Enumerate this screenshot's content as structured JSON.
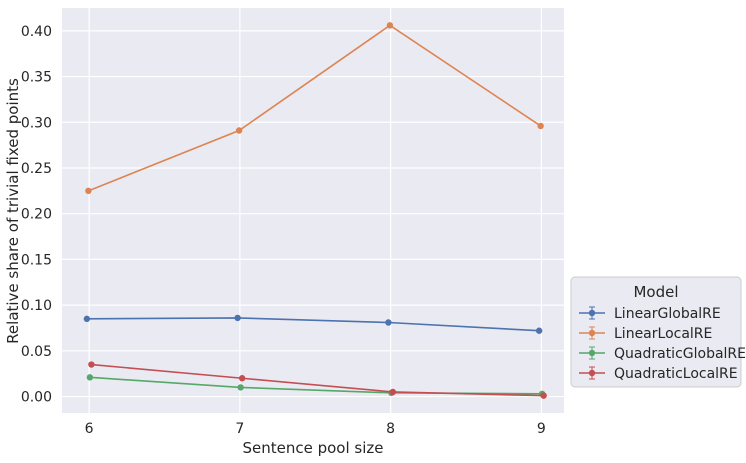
{
  "chart_data": {
    "type": "line",
    "title": "",
    "xlabel": "Sentence pool size",
    "ylabel": "Relative share of trivial fixed points",
    "x": [
      6,
      7,
      8,
      9
    ],
    "x_ticks": [
      "6",
      "7",
      "8",
      "9"
    ],
    "y_ticks": [
      "0.00",
      "0.05",
      "0.10",
      "0.15",
      "0.20",
      "0.25",
      "0.30",
      "0.35",
      "0.40"
    ],
    "ylim": [
      -0.018,
      0.425
    ],
    "grid": true,
    "legend_title": "Model",
    "legend_position": "center-right outside",
    "series": [
      {
        "name": "LinearGlobalRE",
        "color": "#4c72b0",
        "values": [
          0.085,
          0.086,
          0.081,
          0.072
        ]
      },
      {
        "name": "LinearLocalRE",
        "color": "#dd8452",
        "values": [
          0.225,
          0.291,
          0.406,
          0.296
        ]
      },
      {
        "name": "QuadraticGlobalRE",
        "color": "#55a868",
        "values": [
          0.021,
          0.01,
          0.004,
          0.003
        ]
      },
      {
        "name": "QuadraticLocalRE",
        "color": "#c44e52",
        "values": [
          0.035,
          0.02,
          0.005,
          0.001
        ]
      }
    ]
  }
}
